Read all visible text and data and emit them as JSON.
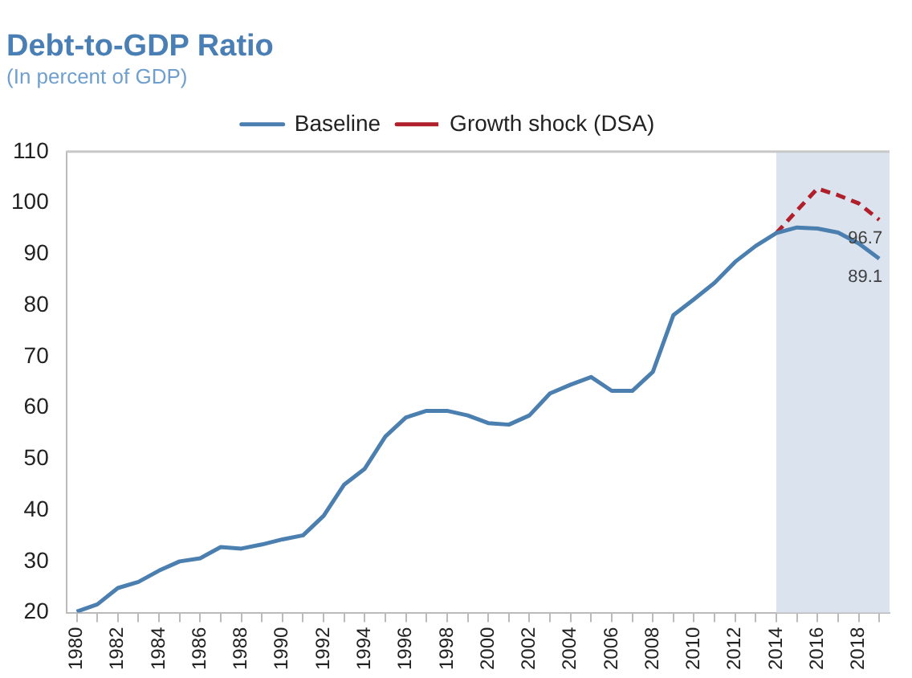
{
  "chart_data": {
    "type": "line",
    "title": "Debt-to-GDP Ratio",
    "subtitle": "(In percent of GDP)",
    "x": [
      1980,
      1981,
      1982,
      1983,
      1984,
      1985,
      1986,
      1987,
      1988,
      1989,
      1990,
      1991,
      1992,
      1993,
      1994,
      1995,
      1996,
      1997,
      1998,
      1999,
      2000,
      2001,
      2002,
      2003,
      2004,
      2005,
      2006,
      2007,
      2008,
      2009,
      2010,
      2011,
      2012,
      2013,
      2014,
      2015,
      2016,
      2017,
      2018,
      2019
    ],
    "series": [
      {
        "name": "Baseline",
        "color": "#4a7fb0",
        "line_style": "solid",
        "values": [
          20.2,
          21.6,
          24.8,
          26.0,
          28.2,
          30.0,
          30.6,
          32.8,
          32.5,
          33.3,
          34.3,
          35.1,
          38.9,
          45.0,
          48.1,
          54.4,
          58.1,
          59.4,
          59.4,
          58.5,
          57.0,
          56.7,
          58.5,
          62.8,
          64.5,
          66.0,
          63.3,
          63.3,
          67.0,
          78.1,
          81.2,
          84.4,
          88.5,
          91.6,
          94.1,
          95.2,
          95.0,
          94.2,
          92.1,
          89.1
        ],
        "value_labels": [
          null,
          null,
          null,
          null,
          null,
          null,
          null,
          null,
          null,
          null,
          null,
          null,
          null,
          null,
          null,
          null,
          null,
          null,
          null,
          null,
          null,
          null,
          null,
          null,
          null,
          null,
          null,
          null,
          null,
          null,
          null,
          null,
          null,
          null,
          null,
          null,
          null,
          null,
          null,
          "89.1"
        ]
      },
      {
        "name": "Growth shock (DSA)",
        "color": "#b0202a",
        "line_style": "dashed",
        "x": [
          2014,
          2015,
          2016,
          2017,
          2018,
          2019
        ],
        "values": [
          94.1,
          98.5,
          102.8,
          101.5,
          99.9,
          96.7
        ],
        "value_labels": [
          null,
          null,
          null,
          null,
          null,
          "96.7"
        ]
      }
    ],
    "xlim": [
      1979.5,
      2019.5
    ],
    "xticks": [
      1980,
      {
        "value": 1981,
        "label": null
      },
      1982,
      {
        "value": 1983,
        "label": null
      },
      1984,
      {
        "value": 1985,
        "label": null
      },
      1986,
      {
        "value": 1987,
        "label": null
      },
      1988,
      {
        "value": 1989,
        "label": null
      },
      1990,
      {
        "value": 1991,
        "label": null
      },
      1992,
      {
        "value": 1993,
        "label": null
      },
      1994,
      {
        "value": 1995,
        "label": null
      },
      1996,
      {
        "value": 1997,
        "label": null
      },
      1998,
      {
        "value": 1999,
        "label": null
      },
      2000,
      {
        "value": 2001,
        "label": null
      },
      2002,
      {
        "value": 2003,
        "label": null
      },
      2004,
      {
        "value": 2005,
        "label": null
      },
      2006,
      {
        "value": 2007,
        "label": null
      },
      2008,
      {
        "value": 2009,
        "label": null
      },
      2010,
      {
        "value": 2011,
        "label": null
      },
      2012,
      {
        "value": 2013,
        "label": null
      },
      2014,
      {
        "value": 2015,
        "label": null
      },
      2016,
      {
        "value": 2017,
        "label": null
      },
      2018,
      {
        "value": 2019,
        "label": null
      }
    ],
    "ylim": [
      20,
      110
    ],
    "yticks": [
      20,
      30,
      40,
      50,
      60,
      70,
      80,
      90,
      100,
      110
    ],
    "bands": [
      {
        "axis": "x",
        "from": 2014,
        "to": 2019.5,
        "color": "#dbe3ef"
      }
    ],
    "legend": "top",
    "grid": false,
    "marker": "none"
  }
}
